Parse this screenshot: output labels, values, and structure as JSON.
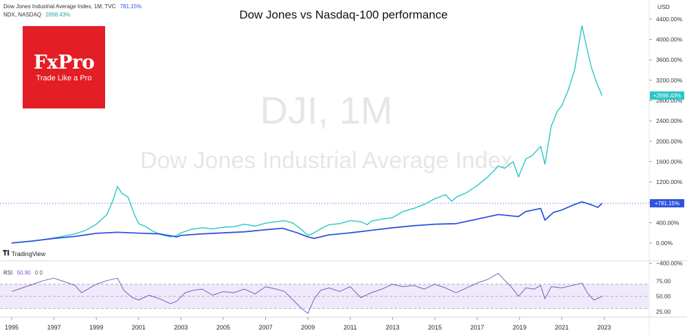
{
  "branding": {
    "logo_text": "FxPro",
    "tagline": "Trade Like a Pro",
    "watermark_symbol": "DJI, 1M",
    "watermark_name": "Dow Jones Industrial Average Index",
    "tradingview": "TradingView"
  },
  "chart_data": [
    {
      "type": "line",
      "title": "Dow Jones vs Nasdaq-100 performance",
      "ylabel": "USD",
      "x_tick_labels": [
        "1995",
        "1997",
        "1999",
        "2001",
        "2003",
        "2005",
        "2007",
        "2009",
        "2011",
        "2013",
        "2015",
        "2017",
        "2019",
        "2021",
        "2023"
      ],
      "y_ticks": [
        -400,
        0,
        400,
        800,
        1200,
        1600,
        2000,
        2400,
        2800,
        3200,
        3600,
        4000,
        4400
      ],
      "y_tick_labels": [
        "−400.00%",
        "0.00%",
        "400.00%",
        "800.00%",
        "1200.00%",
        "1600.00%",
        "2000.00%",
        "2400.00%",
        "2800.00%",
        "3200.00%",
        "3600.00%",
        "4000.00%",
        "4400.00%"
      ],
      "ylim": [
        -420,
        4750
      ],
      "legend": [
        {
          "line": "Dow Jones Industrial Average Index, 1M, TVC",
          "value": "781.15%"
        },
        {
          "line": "NDX, NASDAQ",
          "value": "2898.43%"
        }
      ],
      "series": [
        {
          "name": "NDX, NASDAQ",
          "color": "#26c6c6",
          "last_label": "+2898.43%",
          "x": [
            1995.0,
            1996.0,
            1997.0,
            1998.0,
            1998.5,
            1999.0,
            1999.5,
            1999.8,
            2000.0,
            2000.2,
            2000.5,
            2000.8,
            2001.0,
            2001.3,
            2001.6,
            2002.0,
            2002.5,
            2002.8,
            2003.0,
            2003.5,
            2004.0,
            2004.5,
            2005.0,
            2005.5,
            2006.0,
            2006.5,
            2007.0,
            2007.5,
            2007.9,
            2008.3,
            2008.7,
            2009.0,
            2009.2,
            2009.6,
            2010.0,
            2010.5,
            2011.0,
            2011.5,
            2011.8,
            2012.0,
            2012.5,
            2013.0,
            2013.5,
            2014.0,
            2014.5,
            2015.0,
            2015.5,
            2015.8,
            2016.0,
            2016.5,
            2017.0,
            2017.5,
            2018.0,
            2018.3,
            2018.7,
            2018.95,
            2019.3,
            2019.6,
            2020.0,
            2020.2,
            2020.5,
            2020.8,
            2021.0,
            2021.3,
            2021.6,
            2021.95,
            2022.2,
            2022.4,
            2022.6,
            2022.8,
            2022.9
          ],
          "y": [
            0,
            35,
            100,
            180,
            250,
            370,
            560,
            850,
            1110,
            980,
            900,
            560,
            380,
            330,
            250,
            170,
            120,
            150,
            200,
            270,
            300,
            280,
            310,
            320,
            370,
            330,
            390,
            420,
            440,
            390,
            260,
            150,
            180,
            280,
            360,
            380,
            440,
            420,
            360,
            430,
            470,
            500,
            620,
            680,
            760,
            870,
            950,
            820,
            900,
            990,
            1130,
            1300,
            1510,
            1470,
            1600,
            1300,
            1650,
            1720,
            1900,
            1550,
            2300,
            2600,
            2700,
            3000,
            3400,
            4270,
            3800,
            3450,
            3200,
            3000,
            2898.43
          ]
        },
        {
          "name": "Dow Jones Industrial Average Index",
          "color": "#2d53e0",
          "last_label": "+781.15%",
          "x": [
            1995.0,
            1996.0,
            1997.0,
            1998.0,
            1999.0,
            2000.0,
            2001.0,
            2002.0,
            2002.8,
            2003.0,
            2004.0,
            2005.0,
            2006.0,
            2007.0,
            2007.8,
            2008.5,
            2009.0,
            2009.3,
            2010.0,
            2011.0,
            2012.0,
            2013.0,
            2014.0,
            2015.0,
            2016.0,
            2017.0,
            2018.0,
            2018.95,
            2019.3,
            2020.0,
            2020.2,
            2020.6,
            2021.0,
            2021.5,
            2021.95,
            2022.4,
            2022.7,
            2022.9
          ],
          "y": [
            0,
            40,
            90,
            130,
            190,
            210,
            195,
            180,
            120,
            150,
            180,
            200,
            220,
            260,
            290,
            200,
            120,
            90,
            160,
            200,
            250,
            300,
            340,
            370,
            380,
            470,
            560,
            520,
            620,
            680,
            450,
            600,
            650,
            740,
            810,
            750,
            700,
            781.15
          ]
        }
      ]
    },
    {
      "type": "line",
      "title": "RSI",
      "legend": [
        {
          "line": "RSI",
          "value": "50.90",
          "extra": "0 0"
        }
      ],
      "ylim": [
        18,
        95
      ],
      "y_ticks": [
        25,
        50,
        75
      ],
      "y_tick_labels": [
        "25.00",
        "50.00",
        "75.00"
      ],
      "band": [
        30,
        70
      ],
      "series": [
        {
          "name": "RSI",
          "color": "#7e57c2",
          "x": [
            1995.0,
            1995.5,
            1996.0,
            1996.5,
            1997.0,
            1997.5,
            1998.0,
            1998.3,
            1998.6,
            1999.0,
            1999.5,
            2000.0,
            2000.3,
            2000.7,
            2001.0,
            2001.5,
            2002.0,
            2002.5,
            2002.8,
            2003.2,
            2003.6,
            2004.0,
            2004.5,
            2005.0,
            2005.5,
            2006.0,
            2006.5,
            2007.0,
            2007.5,
            2007.9,
            2008.3,
            2008.7,
            2009.0,
            2009.3,
            2009.6,
            2010.0,
            2010.5,
            2011.0,
            2011.5,
            2012.0,
            2012.5,
            2013.0,
            2013.5,
            2014.0,
            2014.5,
            2015.0,
            2015.5,
            2016.0,
            2016.5,
            2017.0,
            2017.5,
            2018.0,
            2018.2,
            2018.6,
            2018.95,
            2019.3,
            2019.7,
            2020.0,
            2020.2,
            2020.5,
            2021.0,
            2021.5,
            2021.95,
            2022.2,
            2022.5,
            2022.8,
            2022.9
          ],
          "y": [
            58,
            64,
            70,
            76,
            80,
            74,
            68,
            56,
            62,
            70,
            76,
            80,
            60,
            48,
            44,
            52,
            46,
            38,
            42,
            56,
            60,
            62,
            52,
            58,
            56,
            62,
            54,
            66,
            62,
            58,
            44,
            30,
            22,
            46,
            60,
            64,
            58,
            66,
            48,
            56,
            62,
            70,
            66,
            68,
            62,
            70,
            64,
            56,
            64,
            72,
            78,
            88,
            80,
            66,
            50,
            64,
            62,
            68,
            46,
            66,
            64,
            68,
            72,
            56,
            44,
            48,
            51
          ]
        }
      ]
    }
  ]
}
